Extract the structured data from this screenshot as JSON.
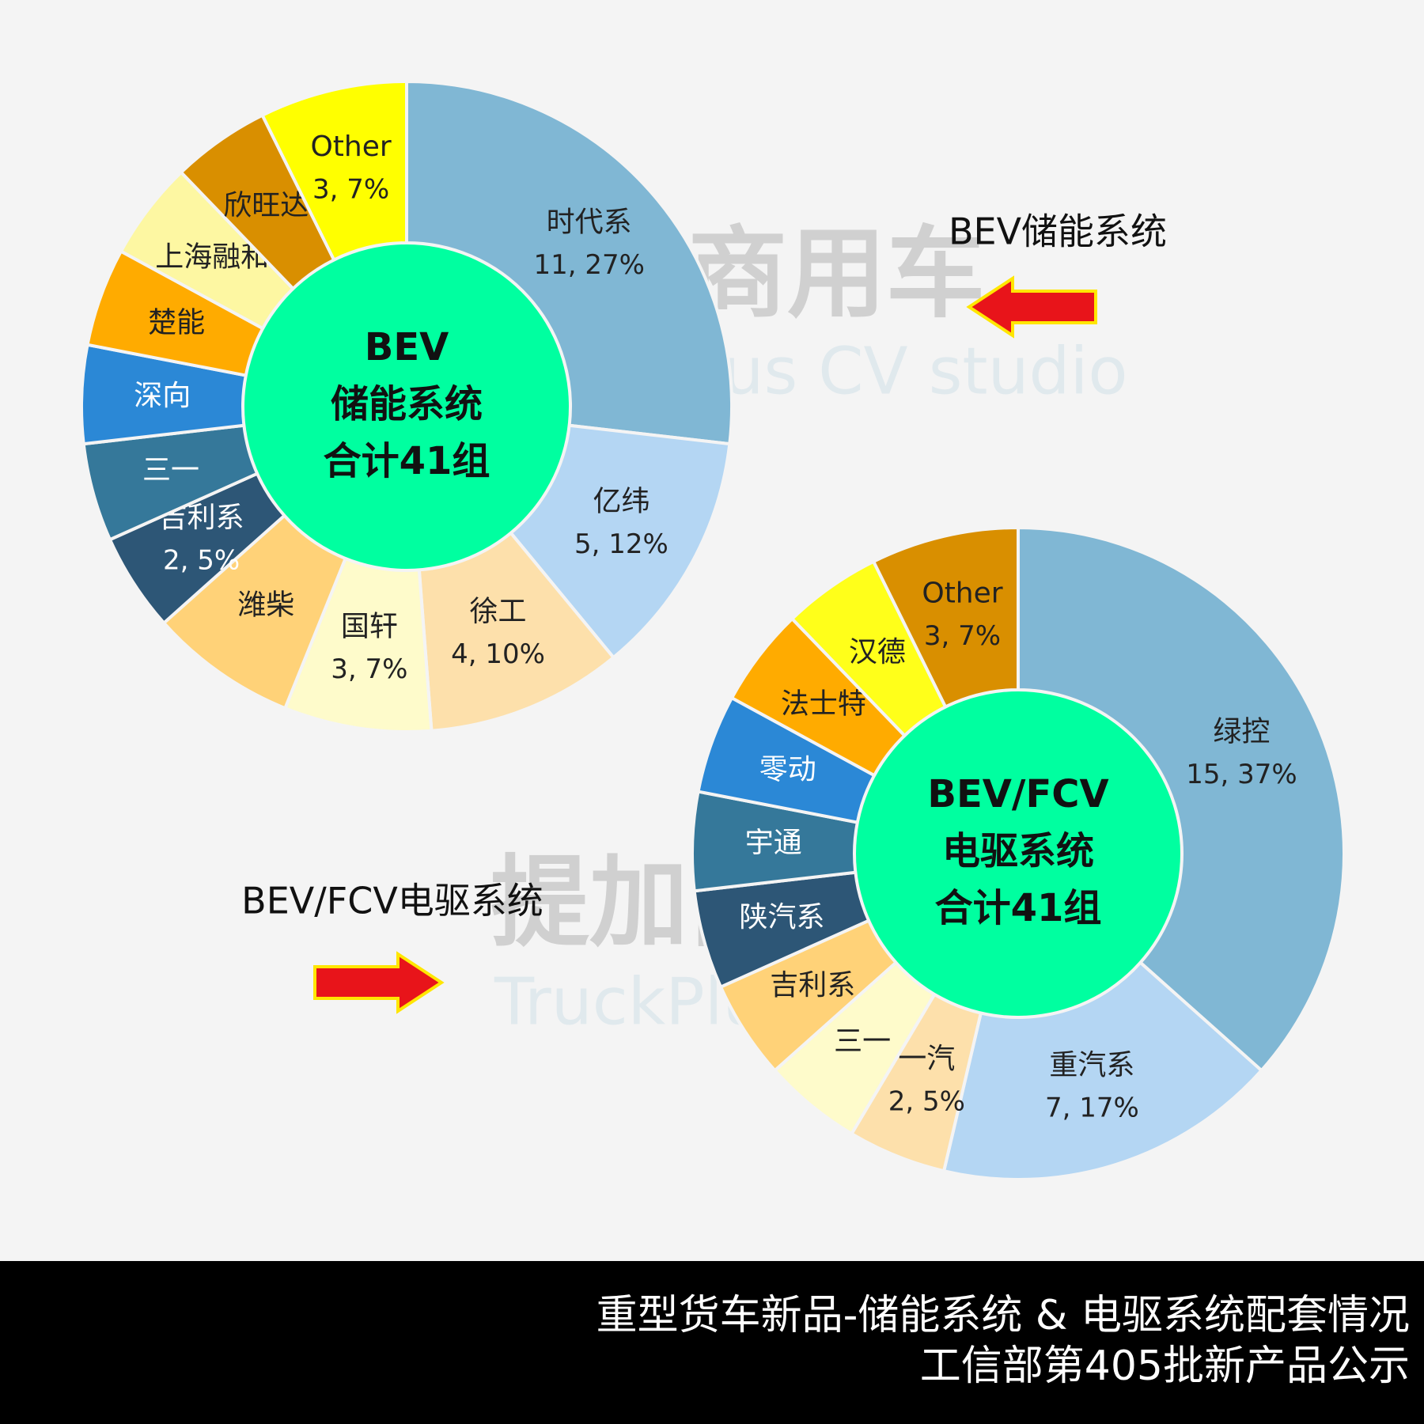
{
  "chart_data": [
    {
      "type": "donut",
      "total": 41,
      "center_label": [
        "BEV",
        "储能系统",
        "合计41组"
      ],
      "categories": [
        "时代系",
        "亿纬",
        "徐工",
        "国轩",
        "潍柴",
        "吉利系",
        "三一",
        "深向",
        "楚能",
        "上海融和",
        "欣旺达",
        "Other"
      ],
      "values": [
        11,
        5,
        4,
        3,
        3,
        2,
        2,
        2,
        2,
        2,
        2,
        3
      ],
      "value_labels": [
        "11, 27%",
        "5, 12%",
        "4, 10%",
        "3, 7%",
        null,
        "2, 5%",
        null,
        null,
        null,
        null,
        null,
        "3, 7%"
      ],
      "colors": [
        "#80b7d4",
        "#b4d6f3",
        "#fde0ab",
        "#fefbcb",
        "#ffd278",
        "#2d5676",
        "#35789a",
        "#2b88d6",
        "#ffab00",
        "#fdf7a2",
        "#d98f00",
        "#ffff00"
      ],
      "side_label": "BEV储能系统"
    },
    {
      "type": "donut",
      "total": 41,
      "center_label": [
        "BEV/FCV",
        "电驱系统",
        "合计41组"
      ],
      "categories": [
        "绿控",
        "重汽系",
        "一汽",
        "三一",
        "吉利系",
        "陕汽系",
        "宇通",
        "零动",
        "法士特",
        "汉德",
        "Other"
      ],
      "values": [
        15,
        7,
        2,
        2,
        2,
        2,
        2,
        2,
        2,
        2,
        3
      ],
      "value_labels": [
        "15, 37%",
        "7, 17%",
        "2, 5%",
        null,
        null,
        null,
        null,
        null,
        null,
        null,
        "3, 7%"
      ],
      "colors": [
        "#80b7d4",
        "#b4d6f3",
        "#fde0ab",
        "#fefbcb",
        "#ffd278",
        "#2d5676",
        "#35789a",
        "#2b88d6",
        "#ffab00",
        "#ffff1a",
        "#d98f00"
      ],
      "side_label": "BEV/FCV电驱系统"
    }
  ],
  "watermark": {
    "cn": "提加商用车",
    "en": "TruckPlus CV studio"
  },
  "footer": {
    "line1": "重型货车新品-储能系统 & 电驱系统配套情况",
    "line2": "工信部第405批新产品公示"
  }
}
